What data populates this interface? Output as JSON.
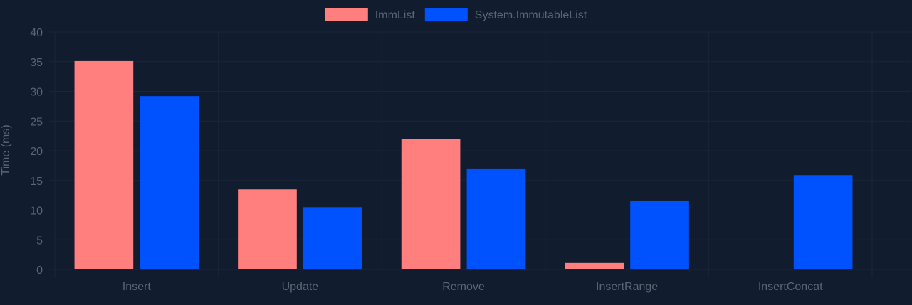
{
  "chart_data": {
    "type": "bar",
    "categories": [
      "Insert",
      "Update",
      "Remove",
      "InsertRange",
      "InsertConcat"
    ],
    "series": [
      {
        "name": "ImmList",
        "color": "#ff7f7f",
        "values": [
          35.1,
          13.5,
          22.0,
          1.1,
          0
        ]
      },
      {
        "name": "System.ImmutableList",
        "color": "#0052ff",
        "values": [
          29.2,
          10.5,
          16.9,
          11.5,
          15.9
        ]
      }
    ],
    "ylabel": "Time (ms)",
    "ylim": [
      0,
      40
    ],
    "yticks": [
      0,
      5,
      10,
      15,
      20,
      25,
      30,
      35,
      40
    ],
    "grid": true,
    "legend_position": "top-center",
    "colors": {
      "background": "#111c2e",
      "grid": "#1a2638",
      "text": "#5b6573"
    }
  }
}
